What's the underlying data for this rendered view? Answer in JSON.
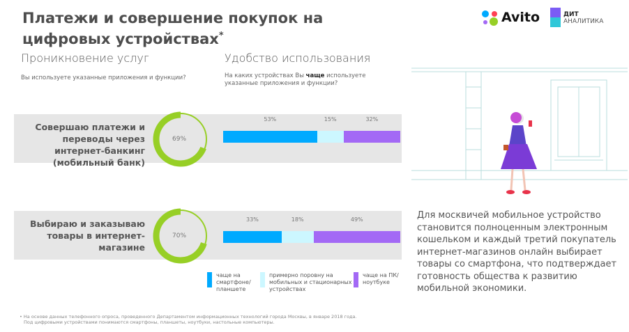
{
  "header": {
    "title": "Платежи и совершение покупок на цифровых устройствах",
    "title_mark": "*",
    "logos": {
      "avito": "Avito",
      "dit_line1": "ДИТ",
      "dit_line2": "АНАЛИТИКА"
    }
  },
  "penetration": {
    "heading": "Проникновение услуг",
    "question": "Вы используете указанные приложения и функции?"
  },
  "usability": {
    "heading": "Удобство использования",
    "question_pre": "На каких устройствах Вы ",
    "question_bold": "чаще",
    "question_post": " используете указанные приложения и функции?"
  },
  "rows": [
    {
      "label": "Совершаю платежи и переводы через интернет-банкинг (мобильный банк)",
      "penetration": "69%",
      "penetration_value": 69,
      "shares": [
        {
          "label": "53%",
          "value": 53
        },
        {
          "label": "15%",
          "value": 15
        },
        {
          "label": "32%",
          "value": 32
        }
      ]
    },
    {
      "label": "Выбираю и заказываю товары в интернет-магазине",
      "penetration": "70%",
      "penetration_value": 70,
      "shares": [
        {
          "label": "33%",
          "value": 33
        },
        {
          "label": "18%",
          "value": 18
        },
        {
          "label": "49%",
          "value": 49
        }
      ]
    }
  ],
  "legend": [
    {
      "label": "чаще на смартфоне/ планшете",
      "color": "#00aaff"
    },
    {
      "label": "примерно поровну на мобильных и стационарных устройствах",
      "color": "#ccf7ff"
    },
    {
      "label": "чаще на ПК/ноутбуке",
      "color": "#a369f5"
    }
  ],
  "colors": {
    "donut": "#97cf26",
    "band": "#e6e6e6"
  },
  "footnote": {
    "line1": "На основе данных телефонного опроса, проведенного Департаментом информационных технологий города Москвы, в январе 2018 года.",
    "line2": "Под цифровыми устройствами понимаются смартфоны, планшеты, ноутбуки, настольные компьютеры."
  },
  "side_text": "Для москвичей мобильное устройство становится полноценным электронным кошельком и каждый третий покупатель интернет-магазинов онлайн выбирает товары со смартфона, что подтверждает готовность общества к развитию мобильной экономики."
}
